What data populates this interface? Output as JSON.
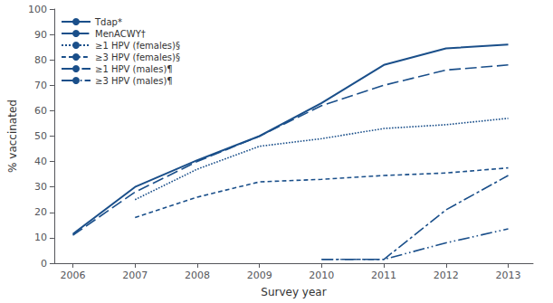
{
  "chart_data": {
    "type": "line",
    "xlabel": "Survey year",
    "ylabel": "% vaccinated",
    "xlim": [
      2005.7,
      2013.4
    ],
    "xticks": [
      2006,
      2007,
      2008,
      2009,
      2010,
      2011,
      2012,
      2013
    ],
    "ylim": [
      0,
      100
    ],
    "yticks": [
      0,
      10,
      20,
      30,
      40,
      50,
      60,
      70,
      80,
      90,
      100
    ],
    "grid": false,
    "legend": "upper left",
    "color": "#1a4f8a",
    "series": [
      {
        "name": "Tdap*",
        "line_style": "solid",
        "x": [
          2006,
          2007,
          2008,
          2009,
          2010,
          2011,
          2012,
          2013
        ],
        "values": [
          11.5,
          30.0,
          40.5,
          50.0,
          63.0,
          78.0,
          84.5,
          86.0
        ]
      },
      {
        "name": "MenACWY†",
        "line_style": "long_dash",
        "x": [
          2006,
          2007,
          2008,
          2009,
          2010,
          2011,
          2012,
          2013
        ],
        "values": [
          11.0,
          28.0,
          40.0,
          50.0,
          62.0,
          70.0,
          76.0,
          78.0
        ]
      },
      {
        "name": "≥1 HPV (females)§",
        "line_style": "dotted",
        "x": [
          2007,
          2008,
          2009,
          2010,
          2011,
          2012,
          2013
        ],
        "values": [
          25.0,
          37.0,
          46.0,
          49.0,
          53.0,
          54.5,
          57.0
        ]
      },
      {
        "name": "≥3 HPV (females)§",
        "line_style": "short_dash",
        "x": [
          2007,
          2008,
          2009,
          2010,
          2011,
          2012,
          2013
        ],
        "values": [
          18.0,
          26.0,
          32.0,
          33.0,
          34.5,
          35.5,
          37.5
        ]
      },
      {
        "name": "≥1 HPV (males)¶",
        "line_style": "dash_dot",
        "x": [
          2010,
          2011,
          2012,
          2013
        ],
        "values": [
          1.5,
          1.5,
          21.0,
          34.5
        ]
      },
      {
        "name": "≥3 HPV (males)¶",
        "line_style": "dash_dot_dot",
        "x": [
          2010,
          2011,
          2012,
          2013
        ],
        "values": [
          1.5,
          1.5,
          8.0,
          13.5
        ]
      }
    ]
  }
}
